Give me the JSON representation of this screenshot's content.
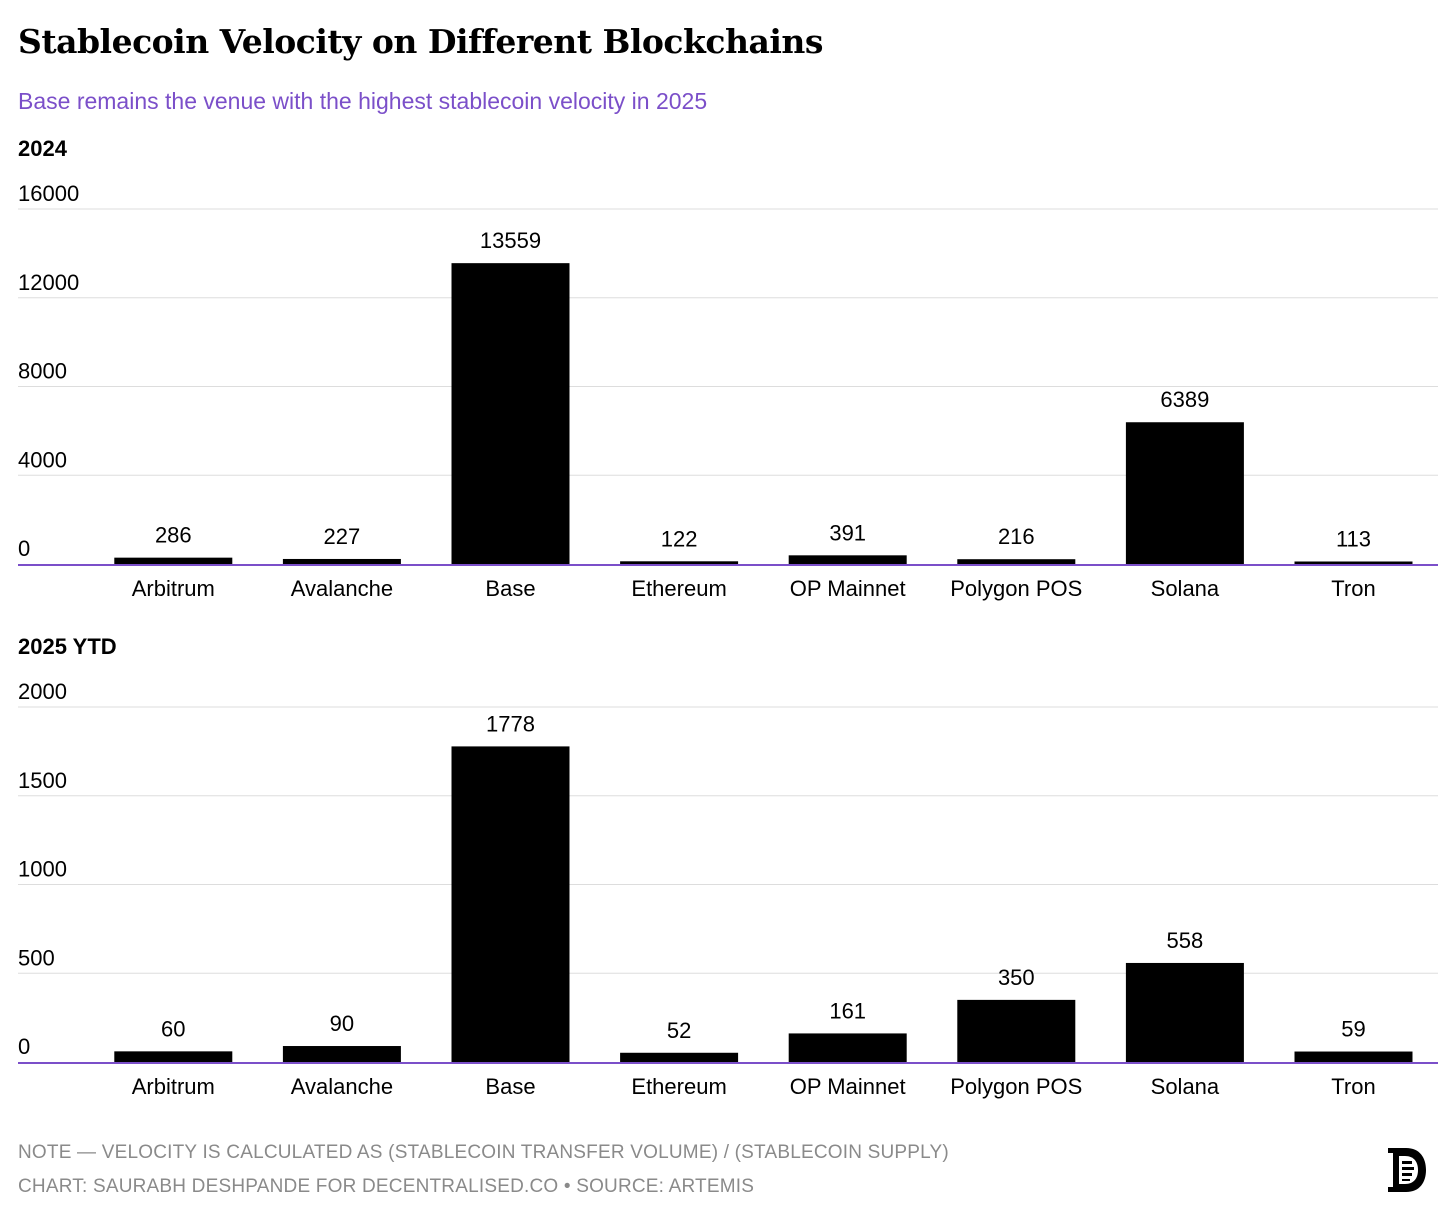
{
  "title": "Stablecoin Velocity on Different Blockchains",
  "subtitle": "Base remains the venue with the highest stablecoin velocity in 2025",
  "footer": {
    "note": "NOTE — VELOCITY IS CALCULATED AS (STABLECOIN TRANSFER VOLUME) / (STABLECOIN SUPPLY)",
    "credit": "CHART: SAURABH DESHPANDE FOR DECENTRALISED.CO • SOURCE: ARTEMIS"
  },
  "colors": {
    "bar": "#000000",
    "axis": "#7b4fc9",
    "grid": "#dddddd",
    "subtitle": "#7b4fc9"
  },
  "logo_icon": "decentralised-co-logo-icon",
  "chart_data": [
    {
      "type": "bar",
      "title": "2024",
      "categories": [
        "Arbitrum",
        "Avalanche",
        "Base",
        "Ethereum",
        "OP Mainnet",
        "Polygon POS",
        "Solana",
        "Tron"
      ],
      "values": [
        286,
        227,
        13559,
        122,
        391,
        216,
        6389,
        113
      ],
      "ylim": [
        0,
        16000
      ],
      "yticks": [
        0,
        4000,
        8000,
        12000,
        16000
      ],
      "xlabel": "",
      "ylabel": "",
      "grid": true
    },
    {
      "type": "bar",
      "title": "2025 YTD",
      "categories": [
        "Arbitrum",
        "Avalanche",
        "Base",
        "Ethereum",
        "OP Mainnet",
        "Polygon POS",
        "Solana",
        "Tron"
      ],
      "values": [
        60,
        90,
        1778,
        52,
        161,
        350,
        558,
        59
      ],
      "ylim": [
        0,
        2000
      ],
      "yticks": [
        0,
        500,
        1000,
        1500,
        2000
      ],
      "xlabel": "",
      "ylabel": "",
      "grid": true
    }
  ]
}
